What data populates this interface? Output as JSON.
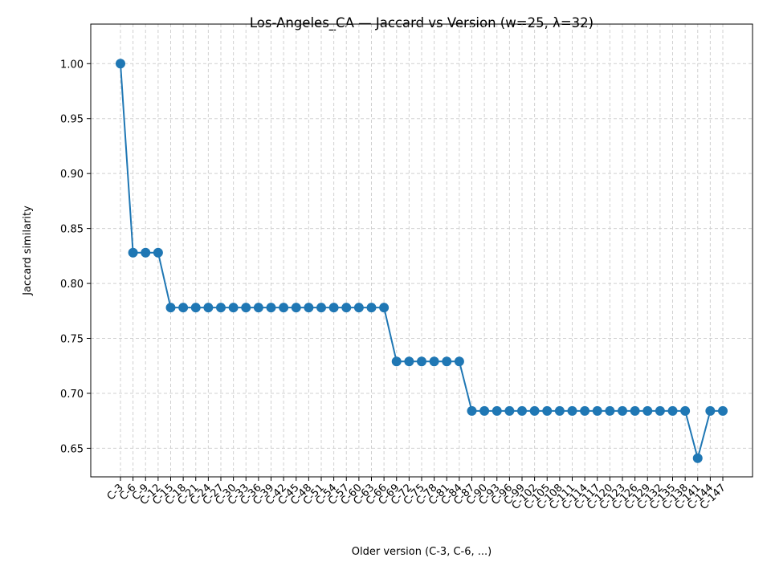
{
  "chart_data": {
    "type": "line",
    "title": "Los-Angeles_CA — Jaccard vs Version (w=25, λ=32)",
    "x_label": "Older version (C-3, C-6, ...)",
    "y_label": "Jaccard similarity",
    "categories": [
      "C-3",
      "C-6",
      "C-9",
      "C-12",
      "C-15",
      "C-18",
      "C-21",
      "C-24",
      "C-27",
      "C-30",
      "C-33",
      "C-36",
      "C-39",
      "C-42",
      "C-45",
      "C-48",
      "C-51",
      "C-54",
      "C-57",
      "C-60",
      "C-63",
      "C-66",
      "C-69",
      "C-72",
      "C-75",
      "C-78",
      "C-81",
      "C-84",
      "C-87",
      "C-90",
      "C-93",
      "C-96",
      "C-99",
      "C-102",
      "C-105",
      "C-108",
      "C-111",
      "C-114",
      "C-117",
      "C-120",
      "C-123",
      "C-126",
      "C-129",
      "C-132",
      "C-135",
      "C-138",
      "C-141",
      "C-144",
      "C-147"
    ],
    "series": [
      {
        "name": "Jaccard",
        "color": "#1f77b4",
        "values": [
          1.0,
          0.828,
          0.828,
          0.828,
          0.778,
          0.778,
          0.778,
          0.778,
          0.778,
          0.778,
          0.778,
          0.778,
          0.778,
          0.778,
          0.778,
          0.778,
          0.778,
          0.778,
          0.778,
          0.778,
          0.778,
          0.778,
          0.729,
          0.729,
          0.729,
          0.729,
          0.729,
          0.729,
          0.684,
          0.684,
          0.684,
          0.684,
          0.684,
          0.684,
          0.684,
          0.684,
          0.684,
          0.684,
          0.684,
          0.684,
          0.684,
          0.684,
          0.684,
          0.684,
          0.684,
          0.684,
          0.641,
          0.684,
          0.684
        ]
      }
    ],
    "ylim": [
      0.624,
      1.036
    ],
    "yticks": [
      0.65,
      {
        "value": 0.7,
        "label": "0.70"
      },
      0.75,
      {
        "value": 0.8,
        "label": "0.80"
      },
      0.85,
      {
        "value": 0.9,
        "label": "0.90"
      },
      0.95,
      {
        "value": 1.0,
        "label": "1.00"
      }
    ],
    "grid": true
  }
}
